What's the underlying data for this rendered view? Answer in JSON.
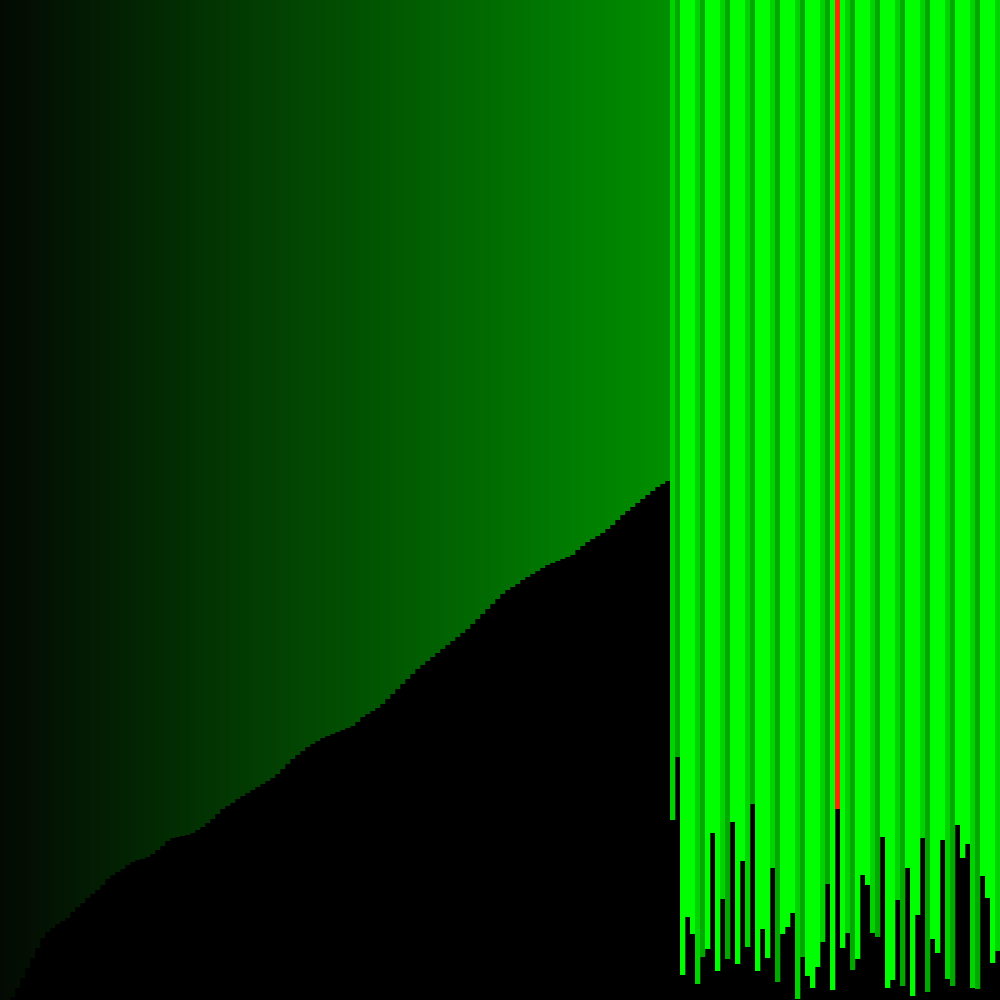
{
  "visualization": {
    "kind": "sorting-algorithm-bars",
    "bar_count": 200,
    "sorted_count": 134,
    "highlight_index": 167,
    "values_scale_max": 1000,
    "sorted_values": [
      0,
      0,
      3,
      12,
      22,
      32,
      42,
      52,
      62,
      68,
      72,
      76,
      79,
      82,
      88,
      93,
      97,
      102,
      106,
      110,
      115,
      121,
      125,
      128,
      131,
      135,
      138,
      140,
      141,
      143,
      146,
      150,
      154,
      159,
      162,
      163,
      164,
      165,
      167,
      170,
      173,
      177,
      181,
      186,
      191,
      194,
      197,
      201,
      204,
      207,
      210,
      213,
      216,
      219,
      222,
      226,
      231,
      236,
      241,
      245,
      249,
      253,
      256,
      259,
      262,
      264,
      266,
      268,
      270,
      272,
      274,
      278,
      283,
      286,
      289,
      292,
      296,
      301,
      306,
      311,
      316,
      321,
      326,
      331,
      335,
      339,
      343,
      347,
      351,
      355,
      359,
      363,
      367,
      371,
      376,
      381,
      386,
      391,
      396,
      401,
      406,
      410,
      413,
      416,
      420,
      423,
      426,
      429,
      432,
      435,
      437,
      439,
      441,
      443,
      445,
      450,
      454,
      458,
      461,
      464,
      467,
      471,
      475,
      480,
      485,
      489,
      493,
      497,
      501,
      505,
      509,
      513,
      516,
      519
    ],
    "unsorted_values": [
      180,
      243,
      25,
      83,
      66,
      16,
      43,
      51,
      167,
      29,
      101,
      41,
      178,
      36,
      139,
      53,
      196,
      29,
      71,
      42,
      132,
      18,
      66,
      73,
      87,
      1,
      43,
      24,
      12,
      33,
      58,
      116,
      10,
      191,
      52,
      67,
      30,
      41,
      125,
      115,
      67,
      63,
      163,
      12,
      20,
      100,
      14,
      132,
      4,
      85,
      162,
      8,
      61,
      47,
      160,
      21,
      14,
      175,
      142,
      156,
      12,
      11,
      124,
      102,
      37,
      49
    ],
    "colors": {
      "background": "#000000",
      "sorted_start": "#030a03",
      "sorted_end": "#008f00",
      "unsorted_bright": "#00ff00",
      "unsorted_mid": "#00d400",
      "unsorted_dark": "#00a800",
      "highlight": "#ff2a00"
    }
  }
}
